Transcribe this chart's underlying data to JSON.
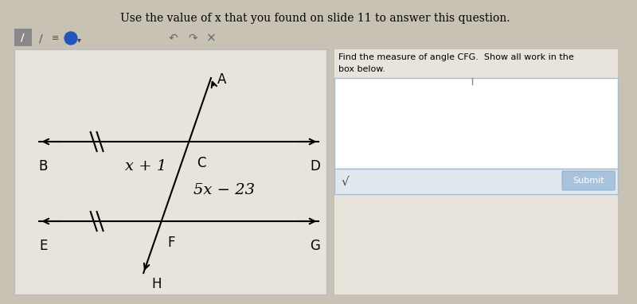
{
  "title": "Use the value of x that you found on slide 11 to answer this question.",
  "side_text_line1": "Find the measure of angle CFG.  Show all work in the",
  "side_text_line2": "box below.",
  "bg_color": "#c8c2b4",
  "diagram_bg": "#e8e4dc",
  "right_bg": "#e8e4dc",
  "label_B": "B",
  "label_D": "D",
  "label_C": "C",
  "label_A": "A",
  "label_E": "E",
  "label_F": "F",
  "label_G": "G",
  "label_H": "H",
  "angle_label_top": "x + 1",
  "angle_label_bot": "5x − 23",
  "submit_color": "#a8c4dc",
  "submit_text": "Submit",
  "checkmark": "√"
}
